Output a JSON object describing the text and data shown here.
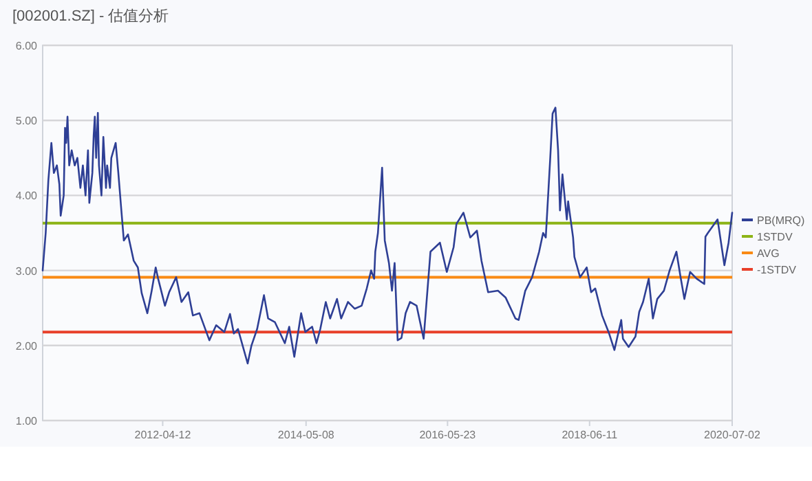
{
  "chart_data": {
    "type": "line",
    "title": "[002001.SZ] - 估值分析",
    "x": [
      "2010-07-19",
      "2010-08-04",
      "2010-08-18",
      "2010-09-03",
      "2010-09-16",
      "2010-10-02",
      "2010-10-15",
      "2010-10-22",
      "2010-11-07",
      "2010-11-14",
      "2010-11-20",
      "2010-11-27",
      "2010-12-06",
      "2010-12-19",
      "2011-01-04",
      "2011-01-18",
      "2011-02-03",
      "2011-02-16",
      "2011-03-02",
      "2011-03-15",
      "2011-03-22",
      "2011-04-07",
      "2011-04-14",
      "2011-04-20",
      "2011-04-27",
      "2011-05-06",
      "2011-05-12",
      "2011-05-25",
      "2011-06-04",
      "2011-06-18",
      "2011-06-24",
      "2011-07-09",
      "2011-07-16",
      "2011-08-08",
      "2011-08-22",
      "2011-09-07",
      "2011-09-20",
      "2011-10-12",
      "2011-11-11",
      "2011-12-03",
      "2011-12-23",
      "2012-01-22",
      "2012-02-14",
      "2012-03-06",
      "2012-03-19",
      "2012-04-24",
      "2012-05-16",
      "2012-06-22",
      "2012-07-20",
      "2012-08-25",
      "2012-09-18",
      "2012-10-23",
      "2012-12-14",
      "2013-01-19",
      "2013-03-03",
      "2013-04-02",
      "2013-04-22",
      "2013-05-14",
      "2013-07-04",
      "2013-07-24",
      "2013-08-23",
      "2013-09-28",
      "2013-10-20",
      "2013-11-25",
      "2014-01-16",
      "2014-02-08",
      "2014-03-07",
      "2014-04-12",
      "2014-05-04",
      "2014-06-09",
      "2014-07-02",
      "2014-07-22",
      "2014-08-20",
      "2014-09-12",
      "2014-10-18",
      "2014-11-09",
      "2014-12-15",
      "2015-01-20",
      "2015-02-25",
      "2015-03-24",
      "2015-04-16",
      "2015-05-02",
      "2015-05-08",
      "2015-05-22",
      "2015-06-13",
      "2015-06-27",
      "2015-07-19",
      "2015-08-04",
      "2015-08-18",
      "2015-09-03",
      "2015-09-23",
      "2015-10-15",
      "2015-11-07",
      "2015-12-12",
      "2016-01-18",
      "2016-02-23",
      "2016-04-13",
      "2016-05-19",
      "2016-06-24",
      "2016-07-09",
      "2016-08-15",
      "2016-09-20",
      "2016-10-25",
      "2016-11-18",
      "2016-12-23",
      "2017-02-13",
      "2017-03-25",
      "2017-05-16",
      "2017-06-02",
      "2017-07-07",
      "2017-08-12",
      "2017-09-18",
      "2017-10-09",
      "2017-10-23",
      "2017-11-15",
      "2017-11-28",
      "2017-12-13",
      "2017-12-27",
      "2018-01-06",
      "2018-01-19",
      "2018-02-11",
      "2018-02-18",
      "2018-03-16",
      "2018-03-23",
      "2018-04-22",
      "2018-05-27",
      "2018-06-19",
      "2018-07-11",
      "2018-08-16",
      "2018-09-22",
      "2018-10-20",
      "2018-11-25",
      "2018-12-04",
      "2019-01-03",
      "2019-02-08",
      "2019-02-28",
      "2019-03-20",
      "2019-04-19",
      "2019-05-11",
      "2019-06-03",
      "2019-07-08",
      "2019-08-07",
      "2019-09-12",
      "2019-10-04",
      "2019-10-24",
      "2019-11-23",
      "2019-12-28",
      "2020-02-06",
      "2020-02-12",
      "2020-02-25",
      "2020-04-16",
      "2020-05-22",
      "2020-06-13",
      "2020-07-02"
    ],
    "series": [
      {
        "name": "PB(MRQ)",
        "color": "#2e3f95",
        "values": [
          3.0,
          3.5,
          4.2,
          4.7,
          4.3,
          4.4,
          4.15,
          3.73,
          4.0,
          4.9,
          4.7,
          5.05,
          4.4,
          4.6,
          4.4,
          4.5,
          4.1,
          4.4,
          4.0,
          4.6,
          3.9,
          4.3,
          4.8,
          5.05,
          4.5,
          5.1,
          4.4,
          4.0,
          4.78,
          4.1,
          4.4,
          4.1,
          4.5,
          4.7,
          4.3,
          3.8,
          3.4,
          3.48,
          3.13,
          3.04,
          2.7,
          2.43,
          2.73,
          3.04,
          2.89,
          2.53,
          2.71,
          2.91,
          2.58,
          2.71,
          2.4,
          2.43,
          2.07,
          2.27,
          2.18,
          2.42,
          2.16,
          2.22,
          1.76,
          2.0,
          2.22,
          2.67,
          2.36,
          2.31,
          2.03,
          2.25,
          1.85,
          2.43,
          2.18,
          2.25,
          2.03,
          2.22,
          2.58,
          2.36,
          2.62,
          2.36,
          2.58,
          2.49,
          2.53,
          2.76,
          3.0,
          2.89,
          3.25,
          3.5,
          4.37,
          3.4,
          3.1,
          2.73,
          3.1,
          2.07,
          2.1,
          2.43,
          2.58,
          2.53,
          2.09,
          3.25,
          3.37,
          2.98,
          3.31,
          3.62,
          3.77,
          3.44,
          3.53,
          3.13,
          2.71,
          2.73,
          2.64,
          2.36,
          2.34,
          2.73,
          2.91,
          3.25,
          3.5,
          3.44,
          4.47,
          5.09,
          5.17,
          4.6,
          3.8,
          4.28,
          3.68,
          3.92,
          3.44,
          3.18,
          2.91,
          3.04,
          2.71,
          2.76,
          2.4,
          2.16,
          1.94,
          2.34,
          2.09,
          1.98,
          2.12,
          2.45,
          2.58,
          2.89,
          2.36,
          2.62,
          2.73,
          3.0,
          3.25,
          2.91,
          2.62,
          2.98,
          2.89,
          2.82,
          3.45,
          3.5,
          3.68,
          3.07,
          3.37,
          3.77
        ]
      }
    ],
    "ref_lines": [
      {
        "axis": "y",
        "value": 3.63,
        "label": "1STDV",
        "color": "#8cb416"
      },
      {
        "axis": "y",
        "value": 2.91,
        "label": "AVG",
        "color": "#f98a14"
      },
      {
        "axis": "y",
        "value": 2.18,
        "label": "-1STDV",
        "color": "#e8402a"
      }
    ],
    "xlim": [
      "2010-07-19",
      "2020-07-02"
    ],
    "xticks": [
      "2012-04-12",
      "2014-05-08",
      "2016-05-23",
      "2018-06-11",
      "2020-07-02"
    ],
    "ylim": [
      1,
      6
    ],
    "yticks": [
      {
        "value": 1,
        "label": "1.00"
      },
      {
        "value": 2,
        "label": "2.00"
      },
      {
        "value": 3,
        "label": "3.00"
      },
      {
        "value": 4,
        "label": "4.00"
      },
      {
        "value": 5,
        "label": "5.00"
      },
      {
        "value": 6,
        "label": "6.00"
      }
    ],
    "grid": "y",
    "legend": "right",
    "marker": "none",
    "line_style": "solid"
  }
}
